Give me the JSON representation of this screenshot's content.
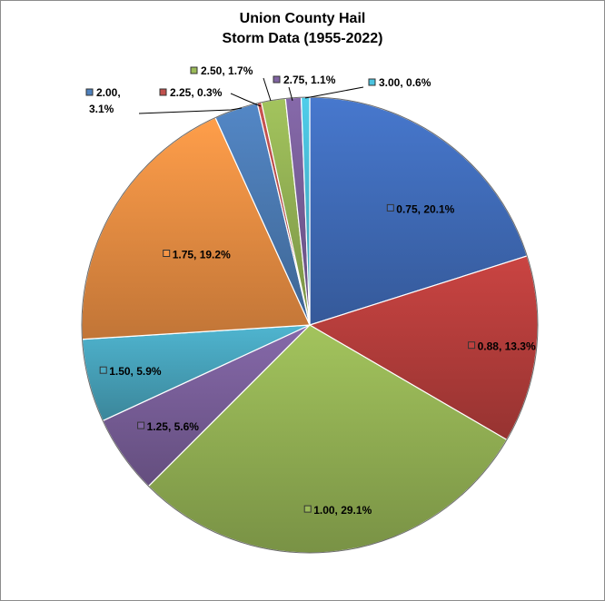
{
  "chart_data": {
    "type": "pie",
    "title_line1": "Union County Hail",
    "title_line2": "Storm Data (1955-2022)",
    "slices": [
      {
        "category": "0.75",
        "percent": 20.1,
        "label": "0.75, 20.1%",
        "color": "#4472C4"
      },
      {
        "category": "0.88",
        "percent": 13.3,
        "label": "0.88, 13.3%",
        "color": "#C0413F"
      },
      {
        "category": "1.00",
        "percent": 29.1,
        "label": "1.00, 29.1%",
        "color": "#9BBB59"
      },
      {
        "category": "1.25",
        "percent": 5.6,
        "label": "1.25, 5.6%",
        "color": "#8064A2"
      },
      {
        "category": "1.50",
        "percent": 5.9,
        "label": "1.50, 5.9%",
        "color": "#4BACC6"
      },
      {
        "category": "1.75",
        "percent": 19.2,
        "label": "1.75, 19.2%",
        "color": "#F79646"
      },
      {
        "category": "2.00",
        "percent": 3.1,
        "label": "2.00, 3.1%",
        "color": "#4F81BD"
      },
      {
        "category": "2.25",
        "percent": 0.3,
        "label": "2.25, 0.3%",
        "color": "#C0504D"
      },
      {
        "category": "2.50",
        "percent": 1.7,
        "label": "2.50, 1.7%",
        "color": "#9BBB59"
      },
      {
        "category": "2.75",
        "percent": 1.1,
        "label": "2.75, 1.1%",
        "color": "#8064A2"
      },
      {
        "category": "3.00",
        "percent": 0.6,
        "label": "3.00, 0.6%",
        "color": "#4BC3DF"
      }
    ]
  }
}
